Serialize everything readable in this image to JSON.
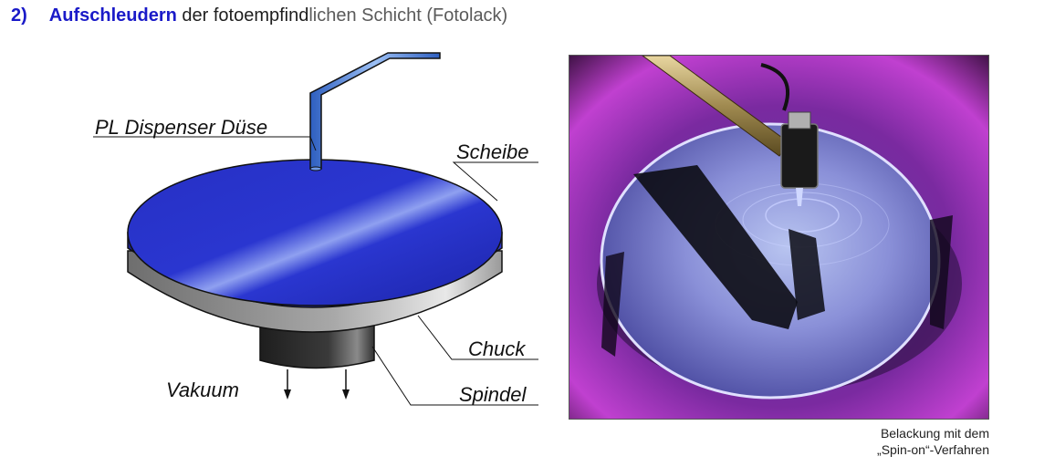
{
  "heading": {
    "number": "2)",
    "keyword": "Aufschleudern",
    "rest_dark": " der fotoempfind",
    "rest_light": "lichen Schicht (Fotolack)"
  },
  "diagram": {
    "labels": {
      "dispenser": "PL Dispenser Düse",
      "wafer": "Scheibe",
      "chuck": "Chuck",
      "vacuum": "Vakuum",
      "spindle": "Spindel"
    },
    "colors": {
      "wafer": "#2a33c8",
      "chuck": "#9a9a9a",
      "spindle": "#2f2f2f",
      "nozzle": "#4a7fd8"
    }
  },
  "photo": {
    "caption_line1": "Belackung mit dem",
    "caption_line2": "„Spin-on“-Verfahren"
  }
}
